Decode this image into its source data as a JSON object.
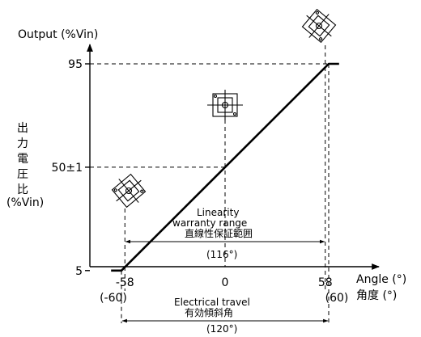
{
  "chart_data": {
    "type": "line",
    "ylabel": "Output (%Vin)",
    "ylabel_vertical": [
      "出",
      "力",
      "電",
      "圧",
      "比"
    ],
    "ylabel_unit": "(%Vin)",
    "xlabel": "Angle (°)",
    "xlabel_jp": "角度 (°)",
    "x_ticks": [
      {
        "value": -58,
        "label": "-58"
      },
      {
        "value": 0,
        "label": "0"
      },
      {
        "value": 58,
        "label": "58"
      }
    ],
    "x_ticks_secondary": [
      {
        "value": -60,
        "label": "(-60)"
      },
      {
        "value": 60,
        "label": "(60)"
      }
    ],
    "y_ticks": [
      {
        "value": 5,
        "label": "5"
      },
      {
        "value": 50,
        "label": "50±1"
      },
      {
        "value": 95,
        "label": "95"
      }
    ],
    "xlim": [
      -66,
      66
    ],
    "ylim": [
      0,
      95
    ],
    "series": [
      {
        "x": [
          -66,
          -60,
          60,
          66
        ],
        "y": [
          5,
          5,
          95,
          95
        ]
      }
    ],
    "annotations": {
      "linearity_en_1": "Linearity",
      "linearity_en_2": "warranty range",
      "linearity_jp": "直線性保証範囲",
      "linearity_value": "(116°)",
      "linearity_range": [
        -58,
        58
      ],
      "electrical_en": "Electrical travel",
      "electrical_jp": "有効傾斜角",
      "electrical_value": "(120°)",
      "electrical_range": [
        -60,
        60
      ]
    },
    "grid": false
  }
}
